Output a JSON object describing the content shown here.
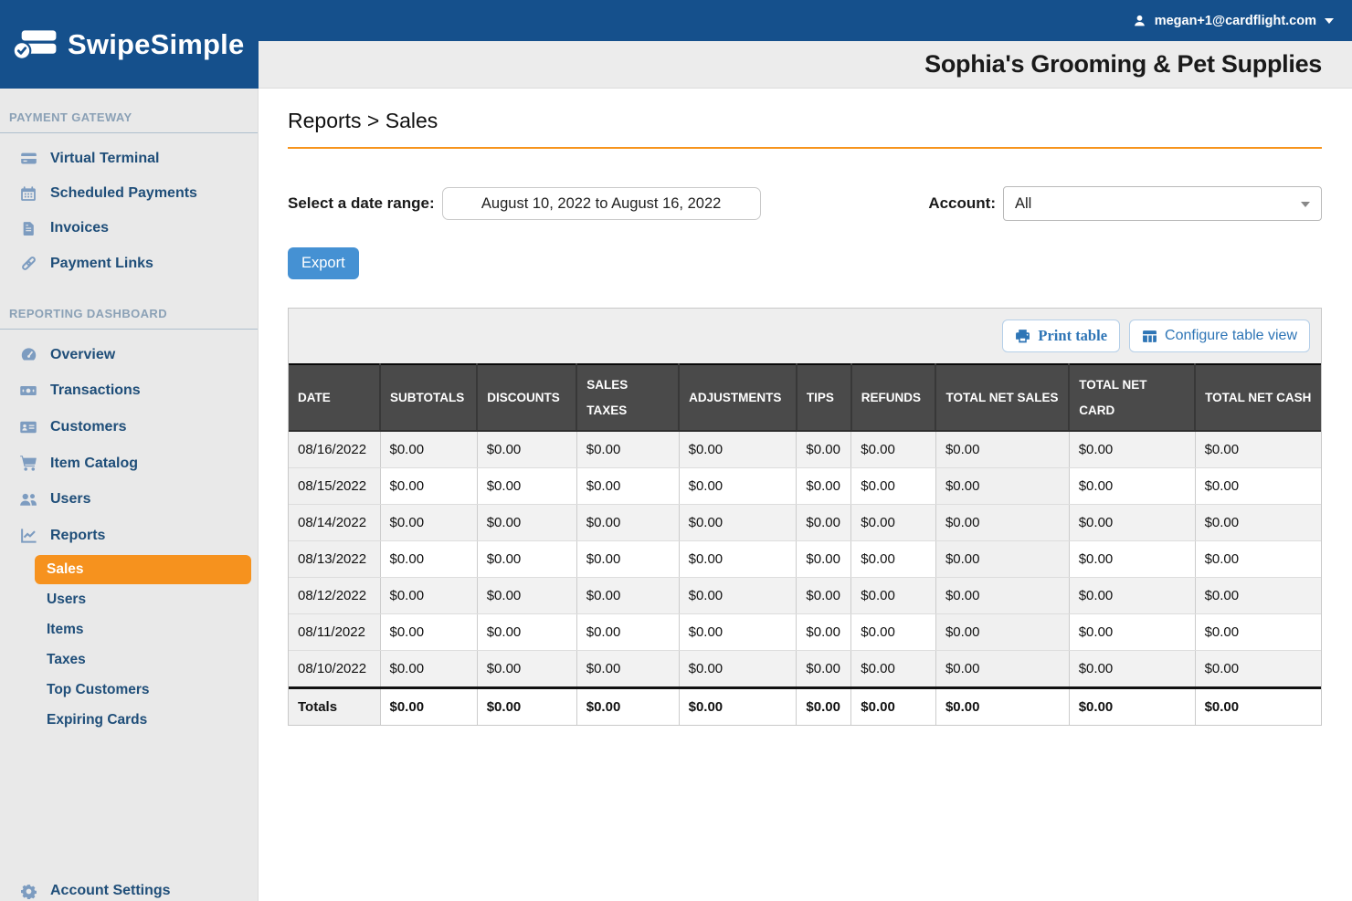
{
  "topbar": {
    "user_email": "megan+1@cardflight.com"
  },
  "logo": {
    "brand": "SwipeSimple"
  },
  "header": {
    "company_name": "Sophia's Grooming & Pet Supplies"
  },
  "sidebar": {
    "sections": [
      {
        "title": "PAYMENT GATEWAY",
        "items": [
          {
            "label": "Virtual Terminal",
            "icon": "credit-card"
          },
          {
            "label": "Scheduled Payments",
            "icon": "calendar"
          },
          {
            "label": "Invoices",
            "icon": "invoice"
          },
          {
            "label": "Payment Links",
            "icon": "link"
          }
        ]
      },
      {
        "title": "REPORTING DASHBOARD",
        "items": [
          {
            "label": "Overview",
            "icon": "gauge"
          },
          {
            "label": "Transactions",
            "icon": "money-bill"
          },
          {
            "label": "Customers",
            "icon": "id-card"
          },
          {
            "label": "Item Catalog",
            "icon": "shopping-cart"
          },
          {
            "label": "Users",
            "icon": "users"
          },
          {
            "label": "Reports",
            "icon": "chart-line"
          }
        ]
      }
    ],
    "reports_subitems": [
      {
        "label": "Sales",
        "active": true
      },
      {
        "label": "Users",
        "active": false
      },
      {
        "label": "Items",
        "active": false
      },
      {
        "label": "Taxes",
        "active": false
      },
      {
        "label": "Top Customers",
        "active": false
      },
      {
        "label": "Expiring Cards",
        "active": false
      }
    ],
    "footer": {
      "label": "Account Settings",
      "icon": "gear"
    }
  },
  "page": {
    "breadcrumb": "Reports > Sales",
    "date_range_label": "Select a date range:",
    "date_range_value": "August 10, 2022 to August 16, 2022",
    "account_label": "Account:",
    "account_value": "All",
    "export_label": "Export",
    "print_table_label": "Print table",
    "configure_table_label": "Configure table view"
  },
  "table": {
    "columns": [
      "DATE",
      "SUBTOTALS",
      "DISCOUNTS",
      "SALES TAXES",
      "ADJUSTMENTS",
      "TIPS",
      "REFUNDS",
      "TOTAL NET SALES",
      "TOTAL NET CARD",
      "TOTAL NET CASH"
    ],
    "rows": [
      {
        "date": "08/16/2022",
        "values": [
          "$0.00",
          "$0.00",
          "$0.00",
          "$0.00",
          "$0.00",
          "$0.00",
          "$0.00",
          "$0.00",
          "$0.00"
        ]
      },
      {
        "date": "08/15/2022",
        "values": [
          "$0.00",
          "$0.00",
          "$0.00",
          "$0.00",
          "$0.00",
          "$0.00",
          "$0.00",
          "$0.00",
          "$0.00"
        ]
      },
      {
        "date": "08/14/2022",
        "values": [
          "$0.00",
          "$0.00",
          "$0.00",
          "$0.00",
          "$0.00",
          "$0.00",
          "$0.00",
          "$0.00",
          "$0.00"
        ]
      },
      {
        "date": "08/13/2022",
        "values": [
          "$0.00",
          "$0.00",
          "$0.00",
          "$0.00",
          "$0.00",
          "$0.00",
          "$0.00",
          "$0.00",
          "$0.00"
        ]
      },
      {
        "date": "08/12/2022",
        "values": [
          "$0.00",
          "$0.00",
          "$0.00",
          "$0.00",
          "$0.00",
          "$0.00",
          "$0.00",
          "$0.00",
          "$0.00"
        ]
      },
      {
        "date": "08/11/2022",
        "values": [
          "$0.00",
          "$0.00",
          "$0.00",
          "$0.00",
          "$0.00",
          "$0.00",
          "$0.00",
          "$0.00",
          "$0.00"
        ]
      },
      {
        "date": "08/10/2022",
        "values": [
          "$0.00",
          "$0.00",
          "$0.00",
          "$0.00",
          "$0.00",
          "$0.00",
          "$0.00",
          "$0.00",
          "$0.00"
        ]
      }
    ],
    "totals": {
      "label": "Totals",
      "values": [
        "$0.00",
        "$0.00",
        "$0.00",
        "$0.00",
        "$0.00",
        "$0.00",
        "$0.00",
        "$0.00",
        "$0.00"
      ]
    }
  },
  "colors": {
    "brand_blue": "#15508C",
    "accent_orange": "#F6921E",
    "link_blue": "#2E75B6",
    "header_gray": "#4A4A4A"
  }
}
